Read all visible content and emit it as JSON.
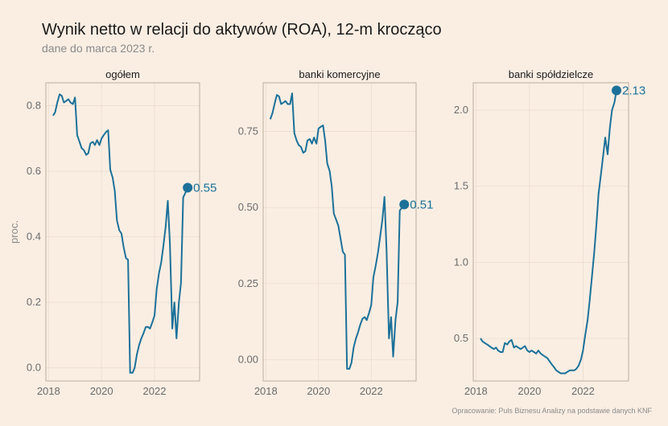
{
  "header": {
    "title": "Wynik netto w relacji do aktywów (ROA), 12-m krocząco",
    "subtitle": "dane do marca 2023 r."
  },
  "caption": "Opracowanie: Puls Biznesu Analizy na podstawie danych KNF",
  "colors": {
    "background": "#faeee3",
    "line": "#1c7199"
  },
  "chart_data": [
    {
      "type": "line",
      "panel": "ogółem",
      "ylabel": "proc.",
      "xlim": [
        2017.9,
        2023.7
      ],
      "ylim": [
        -0.04,
        0.87
      ],
      "yticks": [
        0.0,
        0.2,
        0.4,
        0.6,
        0.8
      ],
      "ytick_labels": [
        "0.0",
        "0.2",
        "0.4",
        "0.6",
        "0.8"
      ],
      "xticks": [
        2018,
        2020,
        2022
      ],
      "xtick_labels": [
        "2018",
        "2020",
        "2022"
      ],
      "end_label": "0.55",
      "x": [
        2018.17,
        2018.25,
        2018.33,
        2018.42,
        2018.5,
        2018.58,
        2018.67,
        2018.75,
        2018.83,
        2018.92,
        2019.0,
        2019.08,
        2019.17,
        2019.25,
        2019.33,
        2019.42,
        2019.5,
        2019.58,
        2019.67,
        2019.75,
        2019.83,
        2019.92,
        2020.0,
        2020.08,
        2020.17,
        2020.25,
        2020.33,
        2020.42,
        2020.5,
        2020.58,
        2020.67,
        2020.75,
        2020.83,
        2020.92,
        2021.0,
        2021.08,
        2021.17,
        2021.25,
        2021.33,
        2021.42,
        2021.5,
        2021.58,
        2021.67,
        2021.75,
        2021.83,
        2021.92,
        2022.0,
        2022.08,
        2022.17,
        2022.25,
        2022.33,
        2022.42,
        2022.5,
        2022.58,
        2022.67,
        2022.75,
        2022.83,
        2022.92,
        2023.0,
        2023.08,
        2023.17,
        2023.25
      ],
      "y": [
        0.77,
        0.78,
        0.81,
        0.835,
        0.83,
        0.81,
        0.815,
        0.82,
        0.81,
        0.805,
        0.825,
        0.71,
        0.69,
        0.67,
        0.665,
        0.65,
        0.655,
        0.685,
        0.69,
        0.68,
        0.695,
        0.68,
        0.7,
        0.71,
        0.72,
        0.725,
        0.605,
        0.58,
        0.54,
        0.45,
        0.42,
        0.41,
        0.37,
        0.335,
        0.33,
        -0.015,
        -0.015,
        0.0,
        0.04,
        0.07,
        0.09,
        0.105,
        0.125,
        0.125,
        0.12,
        0.14,
        0.16,
        0.24,
        0.29,
        0.32,
        0.37,
        0.43,
        0.51,
        0.38,
        0.12,
        0.2,
        0.09,
        0.2,
        0.26,
        0.52,
        0.535,
        0.55
      ]
    },
    {
      "type": "line",
      "panel": "banki komercyjne",
      "xlim": [
        2017.9,
        2023.7
      ],
      "ylim": [
        -0.07,
        0.91
      ],
      "yticks": [
        0.0,
        0.25,
        0.5,
        0.75
      ],
      "ytick_labels": [
        "0.00",
        "0.25",
        "0.50",
        "0.75"
      ],
      "xticks": [
        2018,
        2020,
        2022
      ],
      "xtick_labels": [
        "2018",
        "2020",
        "2022"
      ],
      "end_label": "0.51",
      "x": [
        2018.17,
        2018.25,
        2018.33,
        2018.42,
        2018.5,
        2018.58,
        2018.67,
        2018.75,
        2018.83,
        2018.92,
        2019.0,
        2019.08,
        2019.17,
        2019.25,
        2019.33,
        2019.42,
        2019.5,
        2019.58,
        2019.67,
        2019.75,
        2019.83,
        2019.92,
        2020.0,
        2020.08,
        2020.17,
        2020.25,
        2020.33,
        2020.42,
        2020.5,
        2020.58,
        2020.67,
        2020.75,
        2020.83,
        2020.92,
        2021.0,
        2021.08,
        2021.17,
        2021.25,
        2021.33,
        2021.42,
        2021.5,
        2021.58,
        2021.67,
        2021.75,
        2021.83,
        2021.92,
        2022.0,
        2022.08,
        2022.17,
        2022.25,
        2022.33,
        2022.42,
        2022.5,
        2022.58,
        2022.67,
        2022.75,
        2022.83,
        2022.92,
        2023.0,
        2023.08,
        2023.17,
        2023.25
      ],
      "y": [
        0.79,
        0.81,
        0.84,
        0.87,
        0.865,
        0.84,
        0.845,
        0.85,
        0.84,
        0.84,
        0.875,
        0.745,
        0.72,
        0.705,
        0.7,
        0.68,
        0.685,
        0.72,
        0.725,
        0.71,
        0.73,
        0.71,
        0.76,
        0.765,
        0.77,
        0.72,
        0.645,
        0.62,
        0.57,
        0.48,
        0.46,
        0.44,
        0.4,
        0.355,
        0.345,
        -0.03,
        -0.03,
        -0.01,
        0.04,
        0.07,
        0.09,
        0.115,
        0.135,
        0.14,
        0.13,
        0.155,
        0.18,
        0.27,
        0.31,
        0.35,
        0.4,
        0.46,
        0.535,
        0.36,
        0.07,
        0.14,
        0.01,
        0.13,
        0.19,
        0.49,
        0.5,
        0.51
      ]
    },
    {
      "type": "line",
      "panel": "banki spółdzielcze",
      "xlim": [
        2017.9,
        2023.7
      ],
      "ylim": [
        0.22,
        2.18
      ],
      "yticks": [
        0.5,
        1.0,
        1.5,
        2.0
      ],
      "ytick_labels": [
        "0.5",
        "1.0",
        "1.5",
        "2.0"
      ],
      "xticks": [
        2018,
        2020,
        2022
      ],
      "xtick_labels": [
        "2018",
        "2020",
        "2022"
      ],
      "end_label": "2.13",
      "x": [
        2018.17,
        2018.25,
        2018.33,
        2018.42,
        2018.5,
        2018.58,
        2018.67,
        2018.75,
        2018.83,
        2018.92,
        2019.0,
        2019.08,
        2019.17,
        2019.25,
        2019.33,
        2019.42,
        2019.5,
        2019.58,
        2019.67,
        2019.75,
        2019.83,
        2019.92,
        2020.0,
        2020.08,
        2020.17,
        2020.25,
        2020.33,
        2020.42,
        2020.5,
        2020.58,
        2020.67,
        2020.75,
        2020.83,
        2020.92,
        2021.0,
        2021.08,
        2021.17,
        2021.25,
        2021.33,
        2021.42,
        2021.5,
        2021.58,
        2021.67,
        2021.75,
        2021.83,
        2021.92,
        2022.0,
        2022.08,
        2022.17,
        2022.25,
        2022.33,
        2022.42,
        2022.5,
        2022.58,
        2022.67,
        2022.75,
        2022.83,
        2022.92,
        2023.0,
        2023.08,
        2023.17,
        2023.25
      ],
      "y": [
        0.5,
        0.48,
        0.47,
        0.46,
        0.45,
        0.44,
        0.43,
        0.44,
        0.42,
        0.41,
        0.41,
        0.47,
        0.46,
        0.48,
        0.49,
        0.44,
        0.45,
        0.44,
        0.43,
        0.44,
        0.45,
        0.42,
        0.41,
        0.42,
        0.41,
        0.4,
        0.42,
        0.4,
        0.39,
        0.38,
        0.37,
        0.35,
        0.33,
        0.31,
        0.29,
        0.28,
        0.27,
        0.27,
        0.27,
        0.28,
        0.29,
        0.29,
        0.29,
        0.3,
        0.32,
        0.36,
        0.42,
        0.52,
        0.62,
        0.75,
        0.9,
        1.07,
        1.25,
        1.45,
        1.58,
        1.7,
        1.82,
        1.71,
        1.88,
        2.0,
        2.05,
        2.13
      ]
    }
  ]
}
